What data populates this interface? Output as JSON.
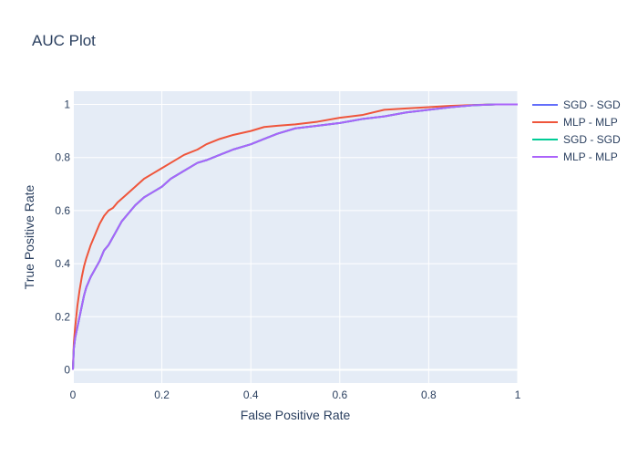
{
  "chart_data": {
    "type": "line",
    "title": "AUC Plot",
    "xlabel": "False Positive Rate",
    "ylabel": "True Positive Rate",
    "xlim": [
      0,
      1
    ],
    "ylim": [
      -0.05,
      1.05
    ],
    "x_ticks": [
      0,
      0.2,
      0.4,
      0.6,
      0.8,
      1
    ],
    "x_tick_labels": [
      "0",
      "0.2",
      "0.4",
      "0.6",
      "0.8",
      "1"
    ],
    "y_ticks": [
      0,
      0.2,
      0.4,
      0.6,
      0.8,
      1
    ],
    "y_tick_labels": [
      "0",
      "0.2",
      "0.4",
      "0.6",
      "0.8",
      "1"
    ],
    "grid": true,
    "legend_position": "right",
    "plot_background": "#e5ecf6",
    "series": [
      {
        "name": "SGD - SGD",
        "color": "#636efa",
        "x": [
          0,
          0.002,
          0.005,
          0.01,
          0.015,
          0.02,
          0.025,
          0.03,
          0.04,
          0.05,
          0.06,
          0.07,
          0.08,
          0.09,
          0.1,
          0.11,
          0.12,
          0.14,
          0.16,
          0.18,
          0.2,
          0.22,
          0.25,
          0.28,
          0.3,
          0.33,
          0.36,
          0.4,
          0.43,
          0.46,
          0.5,
          0.55,
          0.6,
          0.65,
          0.7,
          0.75,
          0.8,
          0.85,
          0.9,
          0.95,
          1
        ],
        "y": [
          0,
          0.08,
          0.12,
          0.16,
          0.2,
          0.24,
          0.28,
          0.31,
          0.35,
          0.38,
          0.41,
          0.45,
          0.47,
          0.5,
          0.53,
          0.56,
          0.58,
          0.62,
          0.65,
          0.67,
          0.69,
          0.72,
          0.75,
          0.78,
          0.79,
          0.81,
          0.83,
          0.85,
          0.87,
          0.89,
          0.91,
          0.92,
          0.93,
          0.945,
          0.955,
          0.97,
          0.98,
          0.99,
          0.997,
          1.0,
          1.0
        ]
      },
      {
        "name": "MLP - MLP",
        "color": "#ef553b",
        "x": [
          0,
          0.002,
          0.005,
          0.01,
          0.015,
          0.02,
          0.025,
          0.03,
          0.04,
          0.05,
          0.06,
          0.07,
          0.08,
          0.09,
          0.1,
          0.12,
          0.14,
          0.16,
          0.18,
          0.2,
          0.22,
          0.25,
          0.28,
          0.3,
          0.33,
          0.36,
          0.4,
          0.43,
          0.46,
          0.5,
          0.55,
          0.6,
          0.65,
          0.7,
          0.75,
          0.8,
          0.85,
          0.9,
          0.95,
          1
        ],
        "y": [
          0,
          0.1,
          0.16,
          0.24,
          0.3,
          0.35,
          0.39,
          0.42,
          0.47,
          0.51,
          0.55,
          0.58,
          0.6,
          0.61,
          0.63,
          0.66,
          0.69,
          0.72,
          0.74,
          0.76,
          0.78,
          0.81,
          0.83,
          0.85,
          0.87,
          0.885,
          0.9,
          0.915,
          0.92,
          0.925,
          0.935,
          0.95,
          0.96,
          0.98,
          0.985,
          0.99,
          0.995,
          0.998,
          1.0,
          1.0
        ]
      },
      {
        "name": "SGD - SGD",
        "color": "#00cc96",
        "x": [
          0,
          0.002,
          0.005,
          0.01,
          0.015,
          0.02,
          0.025,
          0.03,
          0.04,
          0.05,
          0.06,
          0.07,
          0.08,
          0.09,
          0.1,
          0.11,
          0.12,
          0.14,
          0.16,
          0.18,
          0.2,
          0.22,
          0.25,
          0.28,
          0.3,
          0.33,
          0.36,
          0.4,
          0.43,
          0.46,
          0.5,
          0.55,
          0.6,
          0.65,
          0.7,
          0.75,
          0.8,
          0.85,
          0.9,
          0.95,
          1
        ],
        "y": [
          0,
          0.08,
          0.12,
          0.16,
          0.2,
          0.24,
          0.28,
          0.31,
          0.35,
          0.38,
          0.41,
          0.45,
          0.47,
          0.5,
          0.53,
          0.56,
          0.58,
          0.62,
          0.65,
          0.67,
          0.69,
          0.72,
          0.75,
          0.78,
          0.79,
          0.81,
          0.83,
          0.85,
          0.87,
          0.89,
          0.91,
          0.92,
          0.93,
          0.945,
          0.955,
          0.97,
          0.98,
          0.99,
          0.997,
          1.0,
          1.0
        ]
      },
      {
        "name": "MLP - MLP",
        "color": "#ab63fa",
        "x": [
          0,
          0.002,
          0.005,
          0.01,
          0.015,
          0.02,
          0.025,
          0.03,
          0.04,
          0.05,
          0.06,
          0.07,
          0.08,
          0.09,
          0.1,
          0.11,
          0.12,
          0.14,
          0.16,
          0.18,
          0.2,
          0.22,
          0.25,
          0.28,
          0.3,
          0.33,
          0.36,
          0.4,
          0.43,
          0.46,
          0.5,
          0.55,
          0.6,
          0.65,
          0.7,
          0.75,
          0.8,
          0.85,
          0.9,
          0.95,
          1
        ],
        "y": [
          0,
          0.08,
          0.12,
          0.16,
          0.2,
          0.24,
          0.28,
          0.31,
          0.35,
          0.38,
          0.41,
          0.45,
          0.47,
          0.5,
          0.53,
          0.56,
          0.58,
          0.62,
          0.65,
          0.67,
          0.69,
          0.72,
          0.75,
          0.78,
          0.79,
          0.81,
          0.83,
          0.85,
          0.87,
          0.89,
          0.91,
          0.92,
          0.93,
          0.945,
          0.955,
          0.97,
          0.98,
          0.99,
          0.997,
          1.0,
          1.0
        ]
      }
    ]
  }
}
